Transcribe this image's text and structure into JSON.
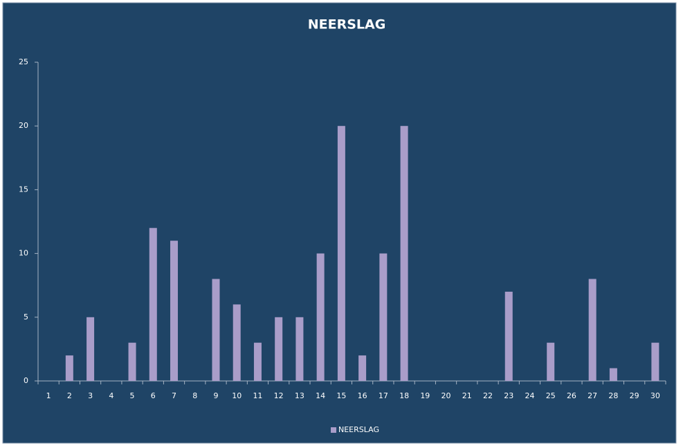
{
  "chart_data": {
    "type": "bar",
    "title": "NEERSLAG",
    "categories": [
      "1",
      "2",
      "3",
      "4",
      "5",
      "6",
      "7",
      "8",
      "9",
      "10",
      "11",
      "12",
      "13",
      "14",
      "15",
      "16",
      "17",
      "18",
      "19",
      "20",
      "21",
      "22",
      "23",
      "24",
      "25",
      "26",
      "27",
      "28",
      "29",
      "30"
    ],
    "series": [
      {
        "name": "NEERSLAG",
        "color": "#a99dc9",
        "values": [
          0,
          2,
          5,
          0,
          3,
          12,
          11,
          0,
          8,
          6,
          3,
          5,
          5,
          10,
          20,
          2,
          10,
          20,
          0,
          0,
          0,
          0,
          7,
          0,
          3,
          0,
          8,
          1,
          0,
          3
        ]
      }
    ],
    "ylim": [
      0,
      25
    ],
    "yticks": [
      0,
      5,
      10,
      15,
      20,
      25
    ],
    "grid": false,
    "legend": "bottom"
  }
}
